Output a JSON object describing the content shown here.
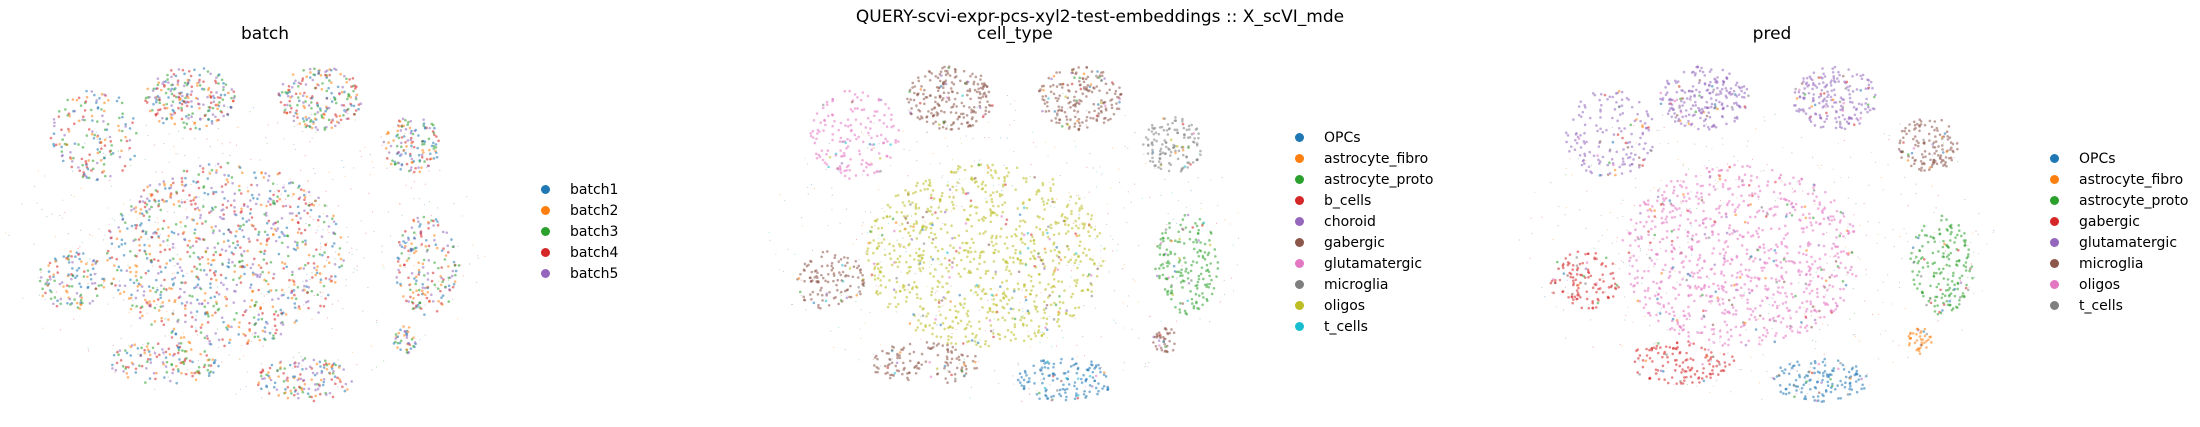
{
  "suptitle": "QUERY-scvi-expr-pcs-xyl2-test-embeddings :: X_scVI_mde",
  "chart_data": [
    {
      "type": "scatter",
      "title": "batch",
      "legend_position": "right",
      "series": [
        {
          "name": "batch1",
          "color": "#1f77b4"
        },
        {
          "name": "batch2",
          "color": "#ff7f0e"
        },
        {
          "name": "batch3",
          "color": "#2ca02c"
        },
        {
          "name": "batch4",
          "color": "#d62728"
        },
        {
          "name": "batch5",
          "color": "#9467bd"
        }
      ]
    },
    {
      "type": "scatter",
      "title": "cell_type",
      "legend_position": "right",
      "series": [
        {
          "name": "OPCs",
          "color": "#1f77b4"
        },
        {
          "name": "astrocyte_fibro",
          "color": "#ff7f0e"
        },
        {
          "name": "astrocyte_proto",
          "color": "#2ca02c"
        },
        {
          "name": "b_cells",
          "color": "#d62728"
        },
        {
          "name": "choroid",
          "color": "#9467bd"
        },
        {
          "name": "gabergic",
          "color": "#8c564b"
        },
        {
          "name": "glutamatergic",
          "color": "#e377c2"
        },
        {
          "name": "microglia",
          "color": "#7f7f7f"
        },
        {
          "name": "oligos",
          "color": "#bcbd22"
        },
        {
          "name": "t_cells",
          "color": "#17becf"
        }
      ]
    },
    {
      "type": "scatter",
      "title": "pred",
      "legend_position": "right",
      "series": [
        {
          "name": "OPCs",
          "color": "#1f77b4"
        },
        {
          "name": "astrocyte_fibro",
          "color": "#ff7f0e"
        },
        {
          "name": "astrocyte_proto",
          "color": "#2ca02c"
        },
        {
          "name": "gabergic",
          "color": "#d62728"
        },
        {
          "name": "glutamatergic",
          "color": "#9467bd"
        },
        {
          "name": "microglia",
          "color": "#8c564b"
        },
        {
          "name": "oligos",
          "color": "#e377c2"
        },
        {
          "name": "t_cells",
          "color": "#7f7f7f"
        }
      ]
    }
  ]
}
